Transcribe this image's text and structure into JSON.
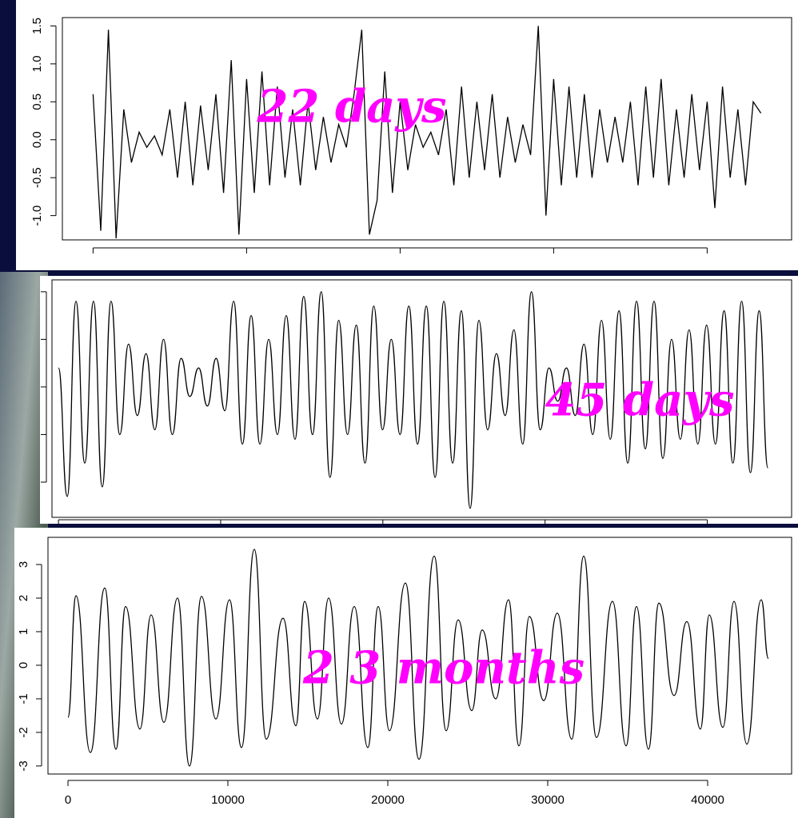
{
  "chart_data": [
    {
      "type": "line",
      "annotation": "22 days",
      "color": "#000000",
      "curve": "linear",
      "xlim": [
        -2000,
        45500
      ],
      "ylim": [
        -1.32,
        1.61
      ],
      "xticks": [
        0,
        10000,
        20000,
        30000,
        40000
      ],
      "show_xtick_labels": false,
      "yticks": [
        {
          "value": -1,
          "label": "-1.0"
        },
        {
          "value": -0.5,
          "label": "-0.5"
        },
        {
          "value": 0,
          "label": "0.0"
        },
        {
          "value": 0.5,
          "label": "0.5"
        },
        {
          "value": 1,
          "label": "1.0"
        },
        {
          "value": 1.5,
          "label": "1.5"
        }
      ],
      "show_ytick_labels": true,
      "x": [
        0,
        500,
        1000,
        1500,
        2000,
        2500,
        3000,
        3500,
        4000,
        4500,
        5000,
        5500,
        6000,
        6500,
        7000,
        7500,
        8000,
        8500,
        9000,
        9500,
        10000,
        10500,
        11000,
        11500,
        12000,
        12500,
        13000,
        13500,
        14000,
        14500,
        15000,
        15500,
        16000,
        16500,
        17000,
        17500,
        18000,
        18500,
        19000,
        19500,
        20000,
        20500,
        21000,
        21500,
        22000,
        22500,
        23000,
        23500,
        24000,
        24500,
        25000,
        25500,
        26000,
        26500,
        27000,
        27500,
        28000,
        28500,
        29000,
        29500,
        30000,
        30500,
        31000,
        31500,
        32000,
        32500,
        33000,
        33500,
        34000,
        34500,
        35000,
        35500,
        36000,
        36500,
        37000,
        37500,
        38000,
        38500,
        39000,
        39500,
        40000,
        40500,
        41000,
        41500,
        42000,
        42500,
        43000,
        43500
      ],
      "values": [
        0.6,
        -1.2,
        1.45,
        -1.3,
        0.4,
        -0.3,
        0.1,
        -0.1,
        0.05,
        -0.2,
        0.4,
        -0.5,
        0.5,
        -0.6,
        0.45,
        -0.4,
        0.6,
        -0.7,
        1.05,
        -1.25,
        0.8,
        -0.7,
        0.9,
        -0.6,
        0.7,
        -0.5,
        0.4,
        -0.6,
        0.5,
        -0.4,
        0.3,
        -0.3,
        0.2,
        -0.1,
        0.6,
        1.45,
        -1.25,
        -0.8,
        0.9,
        -0.7,
        0.5,
        -0.4,
        0.2,
        -0.1,
        0.1,
        -0.2,
        0.4,
        -0.6,
        0.7,
        -0.5,
        0.5,
        -0.4,
        0.6,
        -0.5,
        0.3,
        -0.3,
        0.2,
        -0.2,
        1.5,
        -1.0,
        0.8,
        -0.6,
        0.7,
        -0.5,
        0.6,
        -0.5,
        0.4,
        -0.3,
        0.3,
        -0.3,
        0.5,
        -0.6,
        0.7,
        -0.5,
        0.8,
        -0.6,
        0.4,
        -0.5,
        0.6,
        -0.4,
        0.5,
        -0.9,
        0.7,
        -0.5,
        0.4,
        -0.6,
        0.5,
        0.35
      ]
    },
    {
      "type": "line",
      "annotation": "45 days",
      "color": "#000000",
      "curve": "smooth",
      "xlim": [
        -400,
        45200
      ],
      "ylim": [
        -2.74,
        2.25
      ],
      "xticks": [
        0,
        10000,
        20000,
        30000,
        40000
      ],
      "show_xtick_labels": false,
      "yticks": [
        -2,
        -1,
        0,
        1,
        2
      ],
      "show_ytick_labels": false,
      "x": [
        0,
        540,
        1080,
        1620,
        2160,
        2700,
        3240,
        3780,
        4320,
        4860,
        5400,
        5940,
        6480,
        7020,
        7560,
        8100,
        8640,
        9180,
        9720,
        10260,
        10800,
        11340,
        11880,
        12420,
        12960,
        13500,
        14040,
        14580,
        15120,
        15660,
        16200,
        16740,
        17280,
        17820,
        18360,
        18900,
        19440,
        19980,
        20520,
        21060,
        21600,
        22140,
        22680,
        23220,
        23760,
        24300,
        24840,
        25380,
        25920,
        26460,
        27000,
        27540,
        28080,
        28620,
        29160,
        29700,
        30240,
        30780,
        31320,
        31860,
        32400,
        32940,
        33480,
        34020,
        34560,
        35100,
        35640,
        36180,
        36720,
        37260,
        37800,
        38340,
        38880,
        39420,
        39960,
        40500,
        41040,
        41580,
        42120,
        42660,
        43200,
        43740
      ],
      "values": [
        0.4,
        -2.3,
        1.8,
        -1.6,
        1.8,
        -2.1,
        1.8,
        -1.0,
        0.9,
        -0.6,
        0.7,
        -0.9,
        1.0,
        -1.0,
        0.6,
        -0.2,
        0.4,
        -0.4,
        0.6,
        -0.5,
        1.8,
        -1.2,
        1.5,
        -1.2,
        1.0,
        -1.0,
        1.5,
        -1.1,
        1.9,
        -1.0,
        2.0,
        -1.9,
        1.4,
        -1.0,
        1.3,
        -1.6,
        1.7,
        -0.9,
        1.0,
        -1.0,
        1.7,
        -1.2,
        1.7,
        -1.9,
        1.8,
        -1.6,
        1.6,
        -2.55,
        1.4,
        -0.9,
        0.7,
        -0.6,
        1.2,
        -1.2,
        2.0,
        -0.9,
        0.4,
        -0.3,
        0.4,
        -0.6,
        0.9,
        -1.0,
        1.4,
        -1.1,
        1.6,
        -1.6,
        1.8,
        -1.3,
        1.8,
        -1.5,
        1.0,
        -1.1,
        1.2,
        -1.2,
        1.3,
        -1.2,
        1.6,
        -1.6,
        1.8,
        -1.8,
        1.6,
        -1.7
      ]
    },
    {
      "type": "line",
      "annotation": "2 3 months",
      "color": "#000000",
      "curve": "smooth",
      "xlim": [
        -1250,
        45250
      ],
      "ylim": [
        -3.24,
        3.81
      ],
      "xticks": [
        0,
        10000,
        20000,
        30000,
        40000
      ],
      "show_xtick_labels": true,
      "yticks": [
        -3,
        -2,
        -1,
        0,
        1,
        2,
        3
      ],
      "show_ytick_labels": true,
      "x": [
        0,
        500,
        1400,
        2300,
        3000,
        3600,
        4500,
        5200,
        6000,
        6850,
        7600,
        8350,
        9250,
        10100,
        10850,
        11650,
        12400,
        13450,
        14250,
        14800,
        15600,
        16300,
        17100,
        17900,
        18750,
        19400,
        20100,
        21100,
        21950,
        22900,
        23650,
        24400,
        25250,
        25900,
        26750,
        27550,
        28200,
        28850,
        29750,
        30600,
        31500,
        32250,
        33050,
        34050,
        34900,
        35550,
        36300,
        36950,
        37900,
        38700,
        39550,
        40100,
        40950,
        41650,
        42450,
        43350,
        43800
      ],
      "values": [
        -1.55,
        2.07,
        -2.6,
        2.3,
        -2.5,
        1.75,
        -1.9,
        1.5,
        -1.7,
        2.0,
        -3.0,
        2.05,
        -1.6,
        1.95,
        -2.45,
        3.45,
        -2.2,
        1.4,
        -1.8,
        1.9,
        -1.6,
        2.0,
        -1.75,
        1.75,
        -2.45,
        1.75,
        -1.95,
        2.45,
        -2.8,
        3.25,
        -1.95,
        1.35,
        -1.35,
        1.05,
        -1.0,
        1.95,
        -2.4,
        1.45,
        -1.05,
        1.55,
        -2.2,
        3.25,
        -2.15,
        1.9,
        -2.4,
        1.75,
        -2.5,
        1.85,
        -0.9,
        1.3,
        -1.9,
        1.5,
        -1.85,
        1.9,
        -2.35,
        1.95,
        0.2
      ]
    }
  ]
}
